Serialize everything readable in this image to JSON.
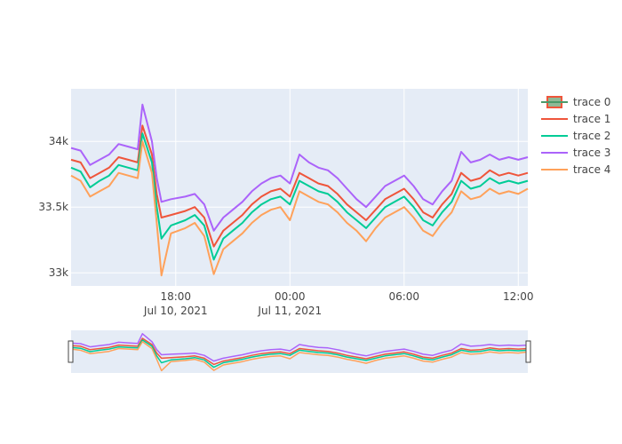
{
  "chart_data": {
    "type": "line",
    "title": "",
    "xlabel": "",
    "ylabel": "",
    "x_range": [
      "2021-07-10 12:30",
      "2021-07-11 12:30"
    ],
    "ylim": [
      32900,
      34400
    ],
    "grid": true,
    "legend_position": "right",
    "has_rangeslider": true,
    "x_ticks": [
      {
        "time": "2021-07-10 18:00",
        "label": "18:00",
        "sublabel": "Jul 10, 2021"
      },
      {
        "time": "2021-07-11 00:00",
        "label": "00:00",
        "sublabel": "Jul 11, 2021"
      },
      {
        "time": "2021-07-11 06:00",
        "label": "06:00",
        "sublabel": ""
      },
      {
        "time": "2021-07-11 12:00",
        "label": "12:00",
        "sublabel": ""
      }
    ],
    "y_ticks": [
      {
        "value": 33000,
        "label": "33k"
      },
      {
        "value": 33500,
        "label": "33.5k"
      },
      {
        "value": 34000,
        "label": "34k"
      }
    ],
    "legend": [
      {
        "name": "trace 0",
        "color": "#636efa",
        "symbol": "box"
      },
      {
        "name": "trace 1",
        "color": "#ef553b",
        "symbol": "line"
      },
      {
        "name": "trace 2",
        "color": "#00cc96",
        "symbol": "line"
      },
      {
        "name": "trace 3",
        "color": "#ab63fa",
        "symbol": "line"
      },
      {
        "name": "trace 4",
        "color": "#ffa15a",
        "symbol": "line"
      }
    ],
    "series": [
      {
        "name": "trace 1",
        "color": "#ef553b",
        "points": [
          [
            "2021-07-10 12:30",
            33860
          ],
          [
            "2021-07-10 13:00",
            33840
          ],
          [
            "2021-07-10 13:30",
            33720
          ],
          [
            "2021-07-10 14:00",
            33760
          ],
          [
            "2021-07-10 14:30",
            33800
          ],
          [
            "2021-07-10 15:00",
            33880
          ],
          [
            "2021-07-10 15:30",
            33860
          ],
          [
            "2021-07-10 16:00",
            33840
          ],
          [
            "2021-07-10 16:15",
            34120
          ],
          [
            "2021-07-10 16:45",
            33900
          ],
          [
            "2021-07-10 17:00",
            33600
          ],
          [
            "2021-07-10 17:15",
            33420
          ],
          [
            "2021-07-10 17:45",
            33440
          ],
          [
            "2021-07-10 18:30",
            33470
          ],
          [
            "2021-07-10 19:00",
            33500
          ],
          [
            "2021-07-10 19:30",
            33420
          ],
          [
            "2021-07-10 20:00",
            33200
          ],
          [
            "2021-07-10 20:30",
            33320
          ],
          [
            "2021-07-10 21:00",
            33380
          ],
          [
            "2021-07-10 21:30",
            33440
          ],
          [
            "2021-07-10 22:00",
            33520
          ],
          [
            "2021-07-10 22:30",
            33580
          ],
          [
            "2021-07-10 23:00",
            33620
          ],
          [
            "2021-07-10 23:30",
            33640
          ],
          [
            "2021-07-11 00:00",
            33580
          ],
          [
            "2021-07-11 00:30",
            33760
          ],
          [
            "2021-07-11 01:00",
            33720
          ],
          [
            "2021-07-11 01:30",
            33680
          ],
          [
            "2021-07-11 02:00",
            33660
          ],
          [
            "2021-07-11 02:30",
            33600
          ],
          [
            "2021-07-11 03:00",
            33520
          ],
          [
            "2021-07-11 03:30",
            33460
          ],
          [
            "2021-07-11 04:00",
            33400
          ],
          [
            "2021-07-11 04:30",
            33480
          ],
          [
            "2021-07-11 05:00",
            33560
          ],
          [
            "2021-07-11 05:30",
            33600
          ],
          [
            "2021-07-11 06:00",
            33640
          ],
          [
            "2021-07-11 06:30",
            33560
          ],
          [
            "2021-07-11 07:00",
            33460
          ],
          [
            "2021-07-11 07:30",
            33420
          ],
          [
            "2021-07-11 08:00",
            33520
          ],
          [
            "2021-07-11 08:30",
            33600
          ],
          [
            "2021-07-11 09:00",
            33760
          ],
          [
            "2021-07-11 09:30",
            33700
          ],
          [
            "2021-07-11 10:00",
            33720
          ],
          [
            "2021-07-11 10:30",
            33780
          ],
          [
            "2021-07-11 11:00",
            33740
          ],
          [
            "2021-07-11 11:30",
            33760
          ],
          [
            "2021-07-11 12:00",
            33740
          ],
          [
            "2021-07-11 12:30",
            33760
          ]
        ]
      },
      {
        "name": "trace 2",
        "color": "#00cc96",
        "points": [
          [
            "2021-07-10 12:30",
            33800
          ],
          [
            "2021-07-10 13:00",
            33770
          ],
          [
            "2021-07-10 13:30",
            33650
          ],
          [
            "2021-07-10 14:00",
            33700
          ],
          [
            "2021-07-10 14:30",
            33740
          ],
          [
            "2021-07-10 15:00",
            33820
          ],
          [
            "2021-07-10 15:30",
            33800
          ],
          [
            "2021-07-10 16:00",
            33780
          ],
          [
            "2021-07-10 16:15",
            34060
          ],
          [
            "2021-07-10 16:45",
            33840
          ],
          [
            "2021-07-10 17:00",
            33500
          ],
          [
            "2021-07-10 17:15",
            33260
          ],
          [
            "2021-07-10 17:45",
            33360
          ],
          [
            "2021-07-10 18:30",
            33400
          ],
          [
            "2021-07-10 19:00",
            33440
          ],
          [
            "2021-07-10 19:30",
            33360
          ],
          [
            "2021-07-10 20:00",
            33100
          ],
          [
            "2021-07-10 20:30",
            33260
          ],
          [
            "2021-07-10 21:00",
            33320
          ],
          [
            "2021-07-10 21:30",
            33380
          ],
          [
            "2021-07-10 22:00",
            33460
          ],
          [
            "2021-07-10 22:30",
            33520
          ],
          [
            "2021-07-10 23:00",
            33560
          ],
          [
            "2021-07-10 23:30",
            33580
          ],
          [
            "2021-07-11 00:00",
            33520
          ],
          [
            "2021-07-11 00:30",
            33700
          ],
          [
            "2021-07-11 01:00",
            33660
          ],
          [
            "2021-07-11 01:30",
            33620
          ],
          [
            "2021-07-11 02:00",
            33600
          ],
          [
            "2021-07-11 02:30",
            33540
          ],
          [
            "2021-07-11 03:00",
            33460
          ],
          [
            "2021-07-11 03:30",
            33400
          ],
          [
            "2021-07-11 04:00",
            33340
          ],
          [
            "2021-07-11 04:30",
            33420
          ],
          [
            "2021-07-11 05:00",
            33500
          ],
          [
            "2021-07-11 05:30",
            33540
          ],
          [
            "2021-07-11 06:00",
            33580
          ],
          [
            "2021-07-11 06:30",
            33500
          ],
          [
            "2021-07-11 07:00",
            33400
          ],
          [
            "2021-07-11 07:30",
            33360
          ],
          [
            "2021-07-11 08:00",
            33460
          ],
          [
            "2021-07-11 08:30",
            33540
          ],
          [
            "2021-07-11 09:00",
            33700
          ],
          [
            "2021-07-11 09:30",
            33640
          ],
          [
            "2021-07-11 10:00",
            33660
          ],
          [
            "2021-07-11 10:30",
            33720
          ],
          [
            "2021-07-11 11:00",
            33680
          ],
          [
            "2021-07-11 11:30",
            33700
          ],
          [
            "2021-07-11 12:00",
            33680
          ],
          [
            "2021-07-11 12:30",
            33700
          ]
        ]
      },
      {
        "name": "trace 3",
        "color": "#ab63fa",
        "points": [
          [
            "2021-07-10 12:30",
            33950
          ],
          [
            "2021-07-10 13:00",
            33930
          ],
          [
            "2021-07-10 13:30",
            33820
          ],
          [
            "2021-07-10 14:00",
            33860
          ],
          [
            "2021-07-10 14:30",
            33900
          ],
          [
            "2021-07-10 15:00",
            33980
          ],
          [
            "2021-07-10 15:30",
            33960
          ],
          [
            "2021-07-10 16:00",
            33940
          ],
          [
            "2021-07-10 16:15",
            34280
          ],
          [
            "2021-07-10 16:45",
            34000
          ],
          [
            "2021-07-10 17:00",
            33720
          ],
          [
            "2021-07-10 17:15",
            33540
          ],
          [
            "2021-07-10 17:45",
            33560
          ],
          [
            "2021-07-10 18:30",
            33580
          ],
          [
            "2021-07-10 19:00",
            33600
          ],
          [
            "2021-07-10 19:30",
            33520
          ],
          [
            "2021-07-10 20:00",
            33320
          ],
          [
            "2021-07-10 20:30",
            33420
          ],
          [
            "2021-07-10 21:00",
            33480
          ],
          [
            "2021-07-10 21:30",
            33540
          ],
          [
            "2021-07-10 22:00",
            33620
          ],
          [
            "2021-07-10 22:30",
            33680
          ],
          [
            "2021-07-10 23:00",
            33720
          ],
          [
            "2021-07-10 23:30",
            33740
          ],
          [
            "2021-07-11 00:00",
            33680
          ],
          [
            "2021-07-11 00:30",
            33900
          ],
          [
            "2021-07-11 01:00",
            33840
          ],
          [
            "2021-07-11 01:30",
            33800
          ],
          [
            "2021-07-11 02:00",
            33780
          ],
          [
            "2021-07-11 02:30",
            33720
          ],
          [
            "2021-07-11 03:00",
            33640
          ],
          [
            "2021-07-11 03:30",
            33560
          ],
          [
            "2021-07-11 04:00",
            33500
          ],
          [
            "2021-07-11 04:30",
            33580
          ],
          [
            "2021-07-11 05:00",
            33660
          ],
          [
            "2021-07-11 05:30",
            33700
          ],
          [
            "2021-07-11 06:00",
            33740
          ],
          [
            "2021-07-11 06:30",
            33660
          ],
          [
            "2021-07-11 07:00",
            33560
          ],
          [
            "2021-07-11 07:30",
            33520
          ],
          [
            "2021-07-11 08:00",
            33620
          ],
          [
            "2021-07-11 08:30",
            33700
          ],
          [
            "2021-07-11 09:00",
            33920
          ],
          [
            "2021-07-11 09:30",
            33840
          ],
          [
            "2021-07-11 10:00",
            33860
          ],
          [
            "2021-07-11 10:30",
            33900
          ],
          [
            "2021-07-11 11:00",
            33860
          ],
          [
            "2021-07-11 11:30",
            33880
          ],
          [
            "2021-07-11 12:00",
            33860
          ],
          [
            "2021-07-11 12:30",
            33880
          ]
        ]
      },
      {
        "name": "trace 4",
        "color": "#ffa15a",
        "points": [
          [
            "2021-07-10 12:30",
            33740
          ],
          [
            "2021-07-10 13:00",
            33700
          ],
          [
            "2021-07-10 13:30",
            33580
          ],
          [
            "2021-07-10 14:00",
            33620
          ],
          [
            "2021-07-10 14:30",
            33660
          ],
          [
            "2021-07-10 15:00",
            33760
          ],
          [
            "2021-07-10 15:30",
            33740
          ],
          [
            "2021-07-10 16:00",
            33720
          ],
          [
            "2021-07-10 16:15",
            34000
          ],
          [
            "2021-07-10 16:45",
            33760
          ],
          [
            "2021-07-10 17:00",
            33380
          ],
          [
            "2021-07-10 17:15",
            32980
          ],
          [
            "2021-07-10 17:45",
            33300
          ],
          [
            "2021-07-10 18:30",
            33340
          ],
          [
            "2021-07-10 19:00",
            33380
          ],
          [
            "2021-07-10 19:30",
            33280
          ],
          [
            "2021-07-10 20:00",
            32990
          ],
          [
            "2021-07-10 20:30",
            33180
          ],
          [
            "2021-07-10 21:00",
            33240
          ],
          [
            "2021-07-10 21:30",
            33300
          ],
          [
            "2021-07-10 22:00",
            33380
          ],
          [
            "2021-07-10 22:30",
            33440
          ],
          [
            "2021-07-10 23:00",
            33480
          ],
          [
            "2021-07-10 23:30",
            33500
          ],
          [
            "2021-07-11 00:00",
            33400
          ],
          [
            "2021-07-11 00:30",
            33620
          ],
          [
            "2021-07-11 01:00",
            33580
          ],
          [
            "2021-07-11 01:30",
            33540
          ],
          [
            "2021-07-11 02:00",
            33520
          ],
          [
            "2021-07-11 02:30",
            33460
          ],
          [
            "2021-07-11 03:00",
            33380
          ],
          [
            "2021-07-11 03:30",
            33320
          ],
          [
            "2021-07-11 04:00",
            33240
          ],
          [
            "2021-07-11 04:30",
            33340
          ],
          [
            "2021-07-11 05:00",
            33420
          ],
          [
            "2021-07-11 05:30",
            33460
          ],
          [
            "2021-07-11 06:00",
            33500
          ],
          [
            "2021-07-11 06:30",
            33420
          ],
          [
            "2021-07-11 07:00",
            33320
          ],
          [
            "2021-07-11 07:30",
            33280
          ],
          [
            "2021-07-11 08:00",
            33380
          ],
          [
            "2021-07-11 08:30",
            33460
          ],
          [
            "2021-07-11 09:00",
            33620
          ],
          [
            "2021-07-11 09:30",
            33560
          ],
          [
            "2021-07-11 10:00",
            33580
          ],
          [
            "2021-07-11 10:30",
            33640
          ],
          [
            "2021-07-11 11:00",
            33600
          ],
          [
            "2021-07-11 11:30",
            33620
          ],
          [
            "2021-07-11 12:00",
            33600
          ],
          [
            "2021-07-11 12:30",
            33640
          ]
        ]
      }
    ]
  }
}
